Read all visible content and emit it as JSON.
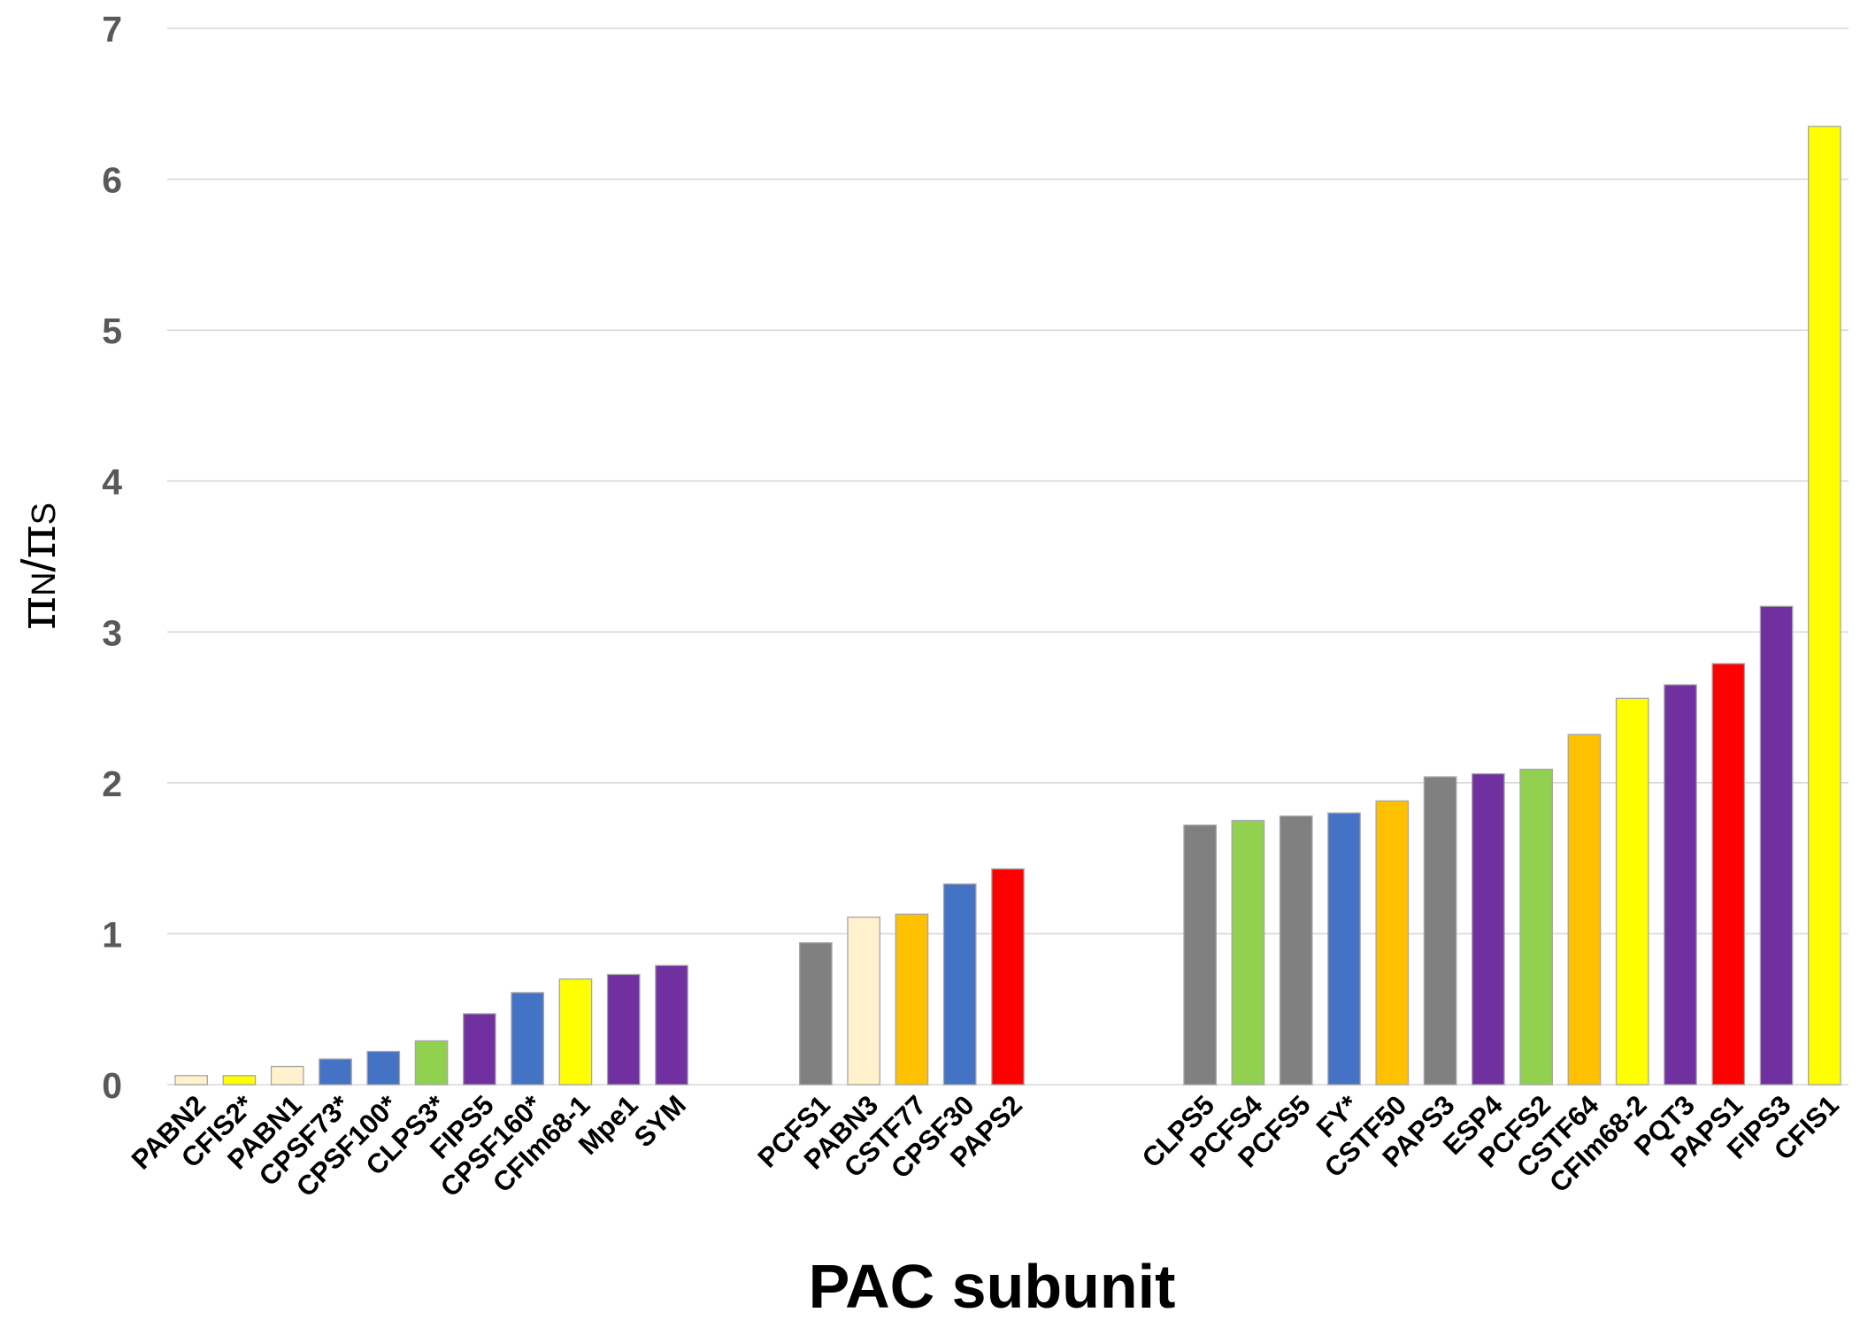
{
  "chart_data": {
    "type": "bar",
    "xlabel": "PAC subunit",
    "ylabel": "πN/πS",
    "ylim": [
      0,
      7
    ],
    "yticks": [
      0,
      1,
      2,
      3,
      4,
      5,
      6,
      7
    ],
    "grid": true,
    "grid_color": "#D9D9D9",
    "bar_outline": "#A6A6A6",
    "categories": [
      "PABN2",
      "CFIS2*",
      "PABN1",
      "CPSF73*",
      "CPSF100*",
      "CLPS3*",
      "FIPS5",
      "CPSF160*",
      "CFIm68-1",
      "Mpe1",
      "SYM",
      "",
      "",
      "PCFS1",
      "PABN3",
      "CSTF77",
      "CPSF30",
      "PAPS2",
      "",
      "",
      "",
      "CLPS5",
      "PCFS4",
      "PCFS5",
      "FY*",
      "CSTF50",
      "PAPS3",
      "ESP4",
      "PCFS2",
      "CSTF64",
      "CFIm68-2",
      "PQT3",
      "PAPS1",
      "FIPS3",
      "CFIS1"
    ],
    "values": [
      0.06,
      0.06,
      0.12,
      0.17,
      0.22,
      0.29,
      0.47,
      0.61,
      0.7,
      0.73,
      0.79,
      null,
      null,
      0.94,
      1.11,
      1.13,
      1.33,
      1.43,
      null,
      null,
      null,
      1.72,
      1.75,
      1.78,
      1.8,
      1.88,
      2.04,
      2.06,
      2.09,
      2.32,
      2.56,
      2.65,
      2.79,
      3.17,
      6.35
    ],
    "colors": [
      "#FFF2CC",
      "#FFFF00",
      "#FFF2CC",
      "#4472C4",
      "#4472C4",
      "#92D050",
      "#7030A0",
      "#4472C4",
      "#FFFF00",
      "#7030A0",
      "#7030A0",
      null,
      null,
      "#808080",
      "#FFF2CC",
      "#FFC000",
      "#4472C4",
      "#FF0000",
      null,
      null,
      null,
      "#808080",
      "#92D050",
      "#808080",
      "#4472C4",
      "#FFC000",
      "#808080",
      "#7030A0",
      "#92D050",
      "#FFC000",
      "#FFFF00",
      "#7030A0",
      "#FF0000",
      "#7030A0",
      "#FFFF00"
    ]
  }
}
